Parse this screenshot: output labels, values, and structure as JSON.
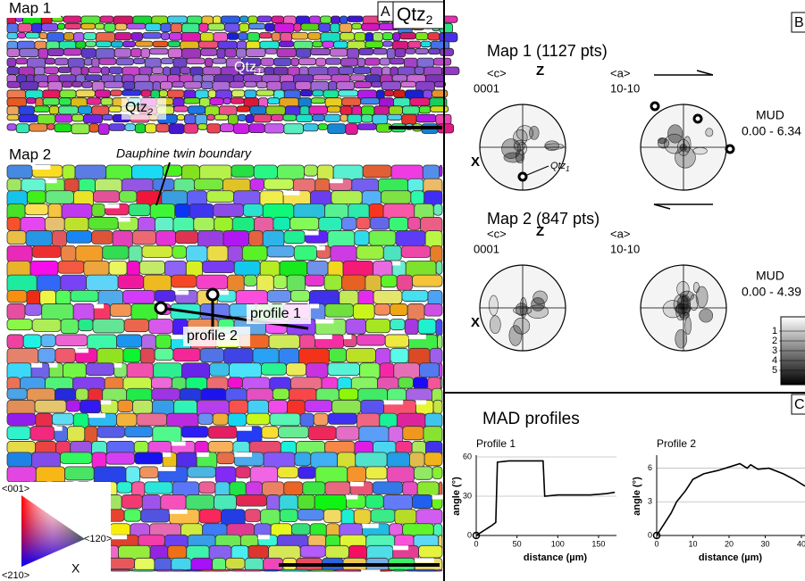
{
  "panel_a": {
    "letter": "A",
    "title": "Qtz",
    "title_sub": "2",
    "map1_label": "Map 1",
    "map2_label": "Map 2",
    "qtz1": "Qtz",
    "qtz1_sub": "1",
    "qtz2": "Qtz",
    "qtz2_sub": "2",
    "twin_label": "Dauphine twin boundary",
    "profile1": "profile 1",
    "profile2": "profile 2",
    "legend": {
      "c001": "<001>",
      "c120": "<120>",
      "c210": "<210>",
      "x": "X"
    }
  },
  "panel_b": {
    "letter": "B",
    "map1_title": "Map 1 (1127 pts)",
    "map2_title": "Map 2 (847 pts)",
    "c_label": "<c>",
    "c_index": "0001",
    "a_label": "<a>",
    "a_index": "10-10",
    "z": "Z",
    "x": "X",
    "qtz1": "Qtz",
    "qtz1_sub": "1",
    "mud_label": "MUD",
    "mud_range1": "0.00 - 6.34",
    "mud_range2": "0.00 - 4.39",
    "scale_ticks": [
      "1",
      "2",
      "3",
      "4",
      "5"
    ]
  },
  "panel_c": {
    "letter": "C",
    "title": "MAD profiles",
    "profiles": [
      {
        "type": "line",
        "title": "Profile 1",
        "xlabel": "distance (µm)",
        "ylabel": "angle (°)",
        "x": [
          0,
          5,
          10,
          15,
          20,
          24,
          26,
          40,
          60,
          82,
          84,
          100,
          120,
          140,
          160,
          170
        ],
        "values": [
          0,
          2,
          4,
          6,
          8,
          10,
          56,
          57,
          57,
          57,
          30,
          31,
          31,
          31,
          32,
          33
        ],
        "xlim": [
          0,
          172
        ],
        "ylim": [
          0,
          60
        ],
        "xticks": [
          0,
          50,
          100,
          150
        ],
        "yticks": [
          0,
          30,
          60
        ],
        "color": "#000000"
      },
      {
        "type": "line",
        "title": "Profile 2",
        "xlabel": "distance (µm)",
        "ylabel": "angle (°)",
        "x": [
          0,
          2,
          4,
          5.5,
          8,
          10,
          13,
          17,
          21,
          23,
          25,
          26,
          28,
          31,
          35,
          38,
          41
        ],
        "values": [
          0,
          1,
          2,
          3,
          4,
          5,
          5.5,
          5.8,
          6.2,
          6.4,
          6,
          6.3,
          5.9,
          6,
          5.5,
          5,
          4.4
        ],
        "xlim": [
          0,
          41
        ],
        "ylim": [
          0,
          7
        ],
        "xticks": [
          0,
          10,
          20,
          30,
          40
        ],
        "yticks": [
          0,
          3,
          6
        ],
        "color": "#000000"
      }
    ]
  }
}
